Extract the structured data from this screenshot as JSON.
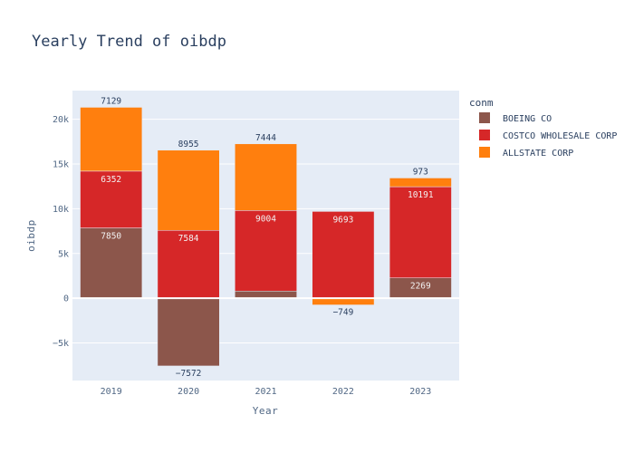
{
  "chart_data": {
    "type": "bar",
    "barmode": "relative",
    "title": "Yearly Trend of oibdp",
    "xlabel": "Year",
    "ylabel": "oibdp",
    "categories": [
      "2019",
      "2020",
      "2021",
      "2022",
      "2023"
    ],
    "ylim": [
      -9200,
      23200
    ],
    "yticks": [
      -5000,
      0,
      5000,
      10000,
      15000,
      20000
    ],
    "ytick_labels": [
      "−5k",
      "0",
      "5k",
      "10k",
      "15k",
      "20k"
    ],
    "grid": true,
    "legend_title": "conm",
    "legend_position": "top-right",
    "series": [
      {
        "name": "BOEING CO",
        "color": "#8c564b",
        "values": [
          7850,
          -7572,
          800,
          0,
          2269
        ],
        "labels": [
          "7850",
          "−7572",
          "",
          "",
          "2269"
        ]
      },
      {
        "name": "COSTCO WHOLESALE CORP",
        "color": "#d62728",
        "values": [
          6352,
          7584,
          9004,
          9693,
          10191
        ],
        "labels": [
          "6352",
          "7584",
          "9004",
          "9693",
          "10191"
        ]
      },
      {
        "name": "ALLSTATE CORP",
        "color": "#ff7f0e",
        "values": [
          7129,
          8955,
          7444,
          -749,
          973
        ],
        "labels": [
          "7129",
          "8955",
          "7444",
          "−749",
          "973"
        ]
      }
    ]
  }
}
